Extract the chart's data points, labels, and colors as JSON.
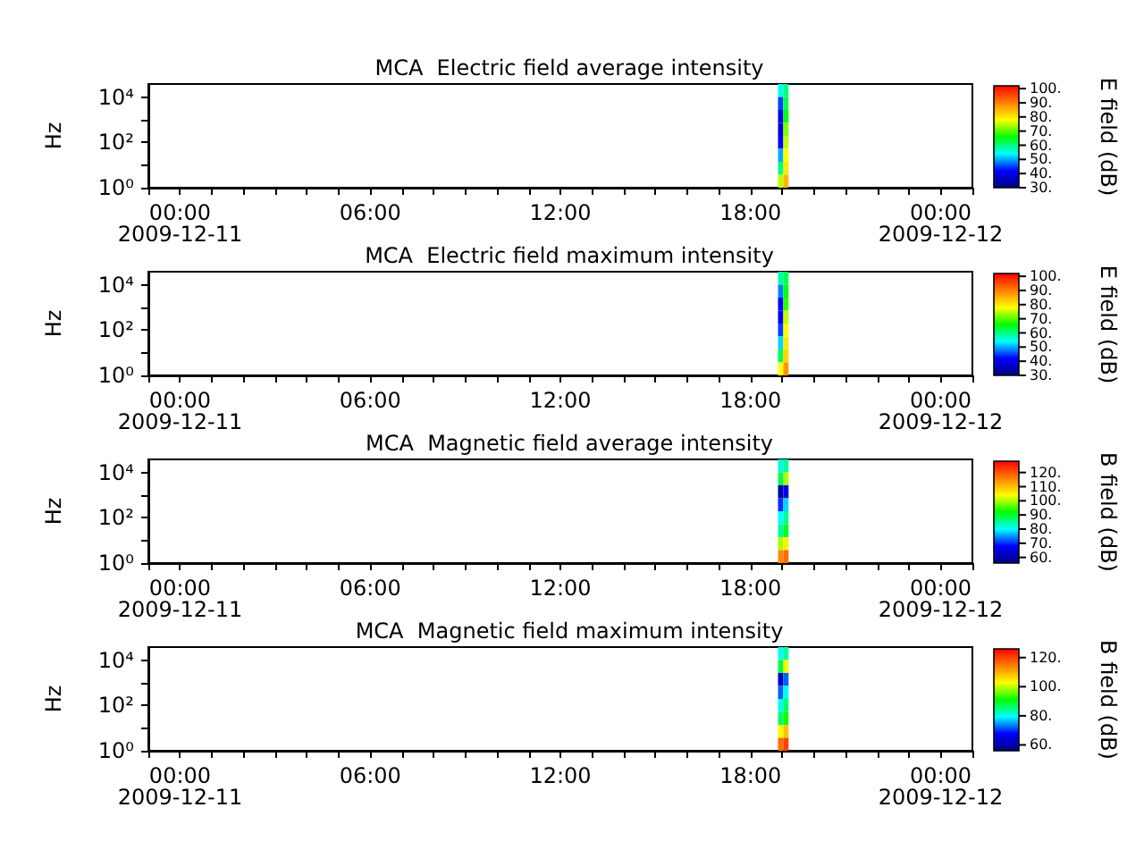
{
  "chart_data": [
    {
      "type": "heatmap",
      "title": "MCA  Electric field average intensity",
      "ylabel": "Hz",
      "clabel": "E field (dB)",
      "log": "y",
      "x": [
        "2009-12-11T18:57",
        "2009-12-11T19:07"
      ],
      "cells": [
        [
          55,
          60
        ],
        [
          45,
          62
        ],
        [
          40,
          65
        ],
        [
          38,
          72
        ],
        [
          42,
          75
        ],
        [
          50,
          78
        ],
        [
          60,
          80
        ],
        [
          75,
          85
        ]
      ],
      "colors": [
        "#000080",
        "#0000ff",
        "#00ffff",
        "#00ff00",
        "#ffff00",
        "#ff8000",
        "#ff0000"
      ],
      "clim": [
        30,
        102
      ],
      "cticks": [
        {
          "value": 30,
          "label": "30."
        },
        {
          "value": 40,
          "label": "40."
        },
        {
          "value": 50,
          "label": "50."
        },
        {
          "value": 60,
          "label": "60."
        },
        {
          "value": 70,
          "label": "70."
        },
        {
          "value": 80,
          "label": "80."
        },
        {
          "value": 90,
          "label": "90."
        },
        {
          "value": 100,
          "label": "100."
        }
      ],
      "xlim": [
        "2009-12-10T23:00",
        "2009-12-12T01:00"
      ],
      "xticks": [
        {
          "value": "2009-12-10T23:00",
          "label": null
        },
        {
          "value": "2009-12-11T00:00",
          "label": "00:00\n2009-12-11"
        },
        {
          "value": "2009-12-11T01:00",
          "label": null
        },
        {
          "value": "2009-12-11T02:00",
          "label": null
        },
        {
          "value": "2009-12-11T03:00",
          "label": null
        },
        {
          "value": "2009-12-11T04:00",
          "label": null
        },
        {
          "value": "2009-12-11T05:00",
          "label": null
        },
        {
          "value": "2009-12-11T06:00",
          "label": "06:00"
        },
        {
          "value": "2009-12-11T07:00",
          "label": null
        },
        {
          "value": "2009-12-11T08:00",
          "label": null
        },
        {
          "value": "2009-12-11T09:00",
          "label": null
        },
        {
          "value": "2009-12-11T10:00",
          "label": null
        },
        {
          "value": "2009-12-11T11:00",
          "label": null
        },
        {
          "value": "2009-12-11T12:00",
          "label": "12:00"
        },
        {
          "value": "2009-12-11T13:00",
          "label": null
        },
        {
          "value": "2009-12-11T14:00",
          "label": null
        },
        {
          "value": "2009-12-11T15:00",
          "label": null
        },
        {
          "value": "2009-12-11T16:00",
          "label": null
        },
        {
          "value": "2009-12-11T17:00",
          "label": null
        },
        {
          "value": "2009-12-11T18:00",
          "label": "18:00"
        },
        {
          "value": "2009-12-11T19:00",
          "label": null
        },
        {
          "value": "2009-12-11T20:00",
          "label": null
        },
        {
          "value": "2009-12-11T21:00",
          "label": null
        },
        {
          "value": "2009-12-11T22:00",
          "label": null
        },
        {
          "value": "2009-12-11T23:00",
          "label": null
        },
        {
          "value": "2009-12-12T00:00",
          "label": "00:00\n2009-12-12"
        },
        {
          "value": "2009-12-12T01:00",
          "label": null
        }
      ],
      "ylim": [
        1,
        38000
      ],
      "yticks": [
        {
          "value": 1,
          "label": "10⁰"
        },
        {
          "value": 10,
          "label": null
        },
        {
          "value": 100,
          "label": "10²"
        },
        {
          "value": 1000,
          "label": null
        },
        {
          "value": 10000,
          "label": "10⁴"
        }
      ]
    },
    {
      "type": "heatmap",
      "title": "MCA  Electric field maximum intensity",
      "ylabel": "Hz",
      "clabel": "E field (dB)",
      "log": "y",
      "x": [
        "2009-12-11T18:57",
        "2009-12-11T19:07"
      ],
      "cells": [
        [
          58,
          62
        ],
        [
          48,
          65
        ],
        [
          42,
          68
        ],
        [
          40,
          75
        ],
        [
          45,
          78
        ],
        [
          52,
          80
        ],
        [
          62,
          82
        ],
        [
          78,
          88
        ]
      ],
      "colors": [
        "#000080",
        "#0000ff",
        "#00ffff",
        "#00ff00",
        "#ffff00",
        "#ff8000",
        "#ff0000"
      ],
      "clim": [
        30,
        102
      ],
      "cticks": [
        {
          "value": 30,
          "label": "30."
        },
        {
          "value": 40,
          "label": "40."
        },
        {
          "value": 50,
          "label": "50."
        },
        {
          "value": 60,
          "label": "60."
        },
        {
          "value": 70,
          "label": "70."
        },
        {
          "value": 80,
          "label": "80."
        },
        {
          "value": 90,
          "label": "90."
        },
        {
          "value": 100,
          "label": "100."
        }
      ],
      "xlim": [
        "2009-12-10T23:00",
        "2009-12-12T01:00"
      ],
      "xticks": [
        {
          "value": "2009-12-10T23:00",
          "label": null
        },
        {
          "value": "2009-12-11T00:00",
          "label": "00:00\n2009-12-11"
        },
        {
          "value": "2009-12-11T01:00",
          "label": null
        },
        {
          "value": "2009-12-11T02:00",
          "label": null
        },
        {
          "value": "2009-12-11T03:00",
          "label": null
        },
        {
          "value": "2009-12-11T04:00",
          "label": null
        },
        {
          "value": "2009-12-11T05:00",
          "label": null
        },
        {
          "value": "2009-12-11T06:00",
          "label": "06:00"
        },
        {
          "value": "2009-12-11T07:00",
          "label": null
        },
        {
          "value": "2009-12-11T08:00",
          "label": null
        },
        {
          "value": "2009-12-11T09:00",
          "label": null
        },
        {
          "value": "2009-12-11T10:00",
          "label": null
        },
        {
          "value": "2009-12-11T11:00",
          "label": null
        },
        {
          "value": "2009-12-11T12:00",
          "label": "12:00"
        },
        {
          "value": "2009-12-11T13:00",
          "label": null
        },
        {
          "value": "2009-12-11T14:00",
          "label": null
        },
        {
          "value": "2009-12-11T15:00",
          "label": null
        },
        {
          "value": "2009-12-11T16:00",
          "label": null
        },
        {
          "value": "2009-12-11T17:00",
          "label": null
        },
        {
          "value": "2009-12-11T18:00",
          "label": "18:00"
        },
        {
          "value": "2009-12-11T19:00",
          "label": null
        },
        {
          "value": "2009-12-11T20:00",
          "label": null
        },
        {
          "value": "2009-12-11T21:00",
          "label": null
        },
        {
          "value": "2009-12-11T22:00",
          "label": null
        },
        {
          "value": "2009-12-11T23:00",
          "label": null
        },
        {
          "value": "2009-12-12T00:00",
          "label": "00:00\n2009-12-12"
        },
        {
          "value": "2009-12-12T01:00",
          "label": null
        }
      ],
      "ylim": [
        1,
        38000
      ],
      "yticks": [
        {
          "value": 1,
          "label": "10⁰"
        },
        {
          "value": 10,
          "label": null
        },
        {
          "value": 100,
          "label": "10²"
        },
        {
          "value": 1000,
          "label": null
        },
        {
          "value": 10000,
          "label": "10⁴"
        }
      ]
    },
    {
      "type": "heatmap",
      "title": "MCA  Magnetic field average intensity",
      "ylabel": "Hz",
      "clabel": "B field (dB)",
      "log": "y",
      "x": [
        "2009-12-11T18:57",
        "2009-12-11T19:07"
      ],
      "cells": [
        [
          82,
          85
        ],
        [
          88,
          100
        ],
        [
          60,
          66
        ],
        [
          70,
          78
        ],
        [
          80,
          85
        ],
        [
          85,
          90
        ],
        [
          100,
          105
        ],
        [
          115,
          118
        ]
      ],
      "colors": [
        "#000080",
        "#0000ff",
        "#00ffff",
        "#00ff00",
        "#ffff00",
        "#ff8000",
        "#ff0000"
      ],
      "clim": [
        56,
        128
      ],
      "cticks": [
        {
          "value": 60,
          "label": "60."
        },
        {
          "value": 70,
          "label": "70."
        },
        {
          "value": 80,
          "label": "80."
        },
        {
          "value": 90,
          "label": "90."
        },
        {
          "value": 100,
          "label": "100."
        },
        {
          "value": 110,
          "label": "110."
        },
        {
          "value": 120,
          "label": "120."
        }
      ],
      "xlim": [
        "2009-12-10T23:00",
        "2009-12-12T01:00"
      ],
      "xticks": [
        {
          "value": "2009-12-10T23:00",
          "label": null
        },
        {
          "value": "2009-12-11T00:00",
          "label": "00:00\n2009-12-11"
        },
        {
          "value": "2009-12-11T01:00",
          "label": null
        },
        {
          "value": "2009-12-11T02:00",
          "label": null
        },
        {
          "value": "2009-12-11T03:00",
          "label": null
        },
        {
          "value": "2009-12-11T04:00",
          "label": null
        },
        {
          "value": "2009-12-11T05:00",
          "label": null
        },
        {
          "value": "2009-12-11T06:00",
          "label": "06:00"
        },
        {
          "value": "2009-12-11T07:00",
          "label": null
        },
        {
          "value": "2009-12-11T08:00",
          "label": null
        },
        {
          "value": "2009-12-11T09:00",
          "label": null
        },
        {
          "value": "2009-12-11T10:00",
          "label": null
        },
        {
          "value": "2009-12-11T11:00",
          "label": null
        },
        {
          "value": "2009-12-11T12:00",
          "label": "12:00"
        },
        {
          "value": "2009-12-11T13:00",
          "label": null
        },
        {
          "value": "2009-12-11T14:00",
          "label": null
        },
        {
          "value": "2009-12-11T15:00",
          "label": null
        },
        {
          "value": "2009-12-11T16:00",
          "label": null
        },
        {
          "value": "2009-12-11T17:00",
          "label": null
        },
        {
          "value": "2009-12-11T18:00",
          "label": "18:00"
        },
        {
          "value": "2009-12-11T19:00",
          "label": null
        },
        {
          "value": "2009-12-11T20:00",
          "label": null
        },
        {
          "value": "2009-12-11T21:00",
          "label": null
        },
        {
          "value": "2009-12-11T22:00",
          "label": null
        },
        {
          "value": "2009-12-11T23:00",
          "label": null
        },
        {
          "value": "2009-12-12T00:00",
          "label": "00:00\n2009-12-12"
        },
        {
          "value": "2009-12-12T01:00",
          "label": null
        }
      ],
      "ylim": [
        1,
        38000
      ],
      "yticks": [
        {
          "value": 1,
          "label": "10⁰"
        },
        {
          "value": 10,
          "label": null
        },
        {
          "value": 100,
          "label": "10²"
        },
        {
          "value": 1000,
          "label": null
        },
        {
          "value": 10000,
          "label": "10⁴"
        }
      ]
    },
    {
      "type": "heatmap",
      "title": "MCA  Magnetic field maximum intensity",
      "ylabel": "Hz",
      "clabel": "B field (dB)",
      "log": "y",
      "x": [
        "2009-12-11T18:57",
        "2009-12-11T19:07"
      ],
      "cells": [
        [
          80,
          84
        ],
        [
          88,
          102
        ],
        [
          62,
          72
        ],
        [
          72,
          80
        ],
        [
          80,
          86
        ],
        [
          86,
          92
        ],
        [
          102,
          108
        ],
        [
          116,
          120
        ]
      ],
      "colors": [
        "#000080",
        "#0000ff",
        "#00ffff",
        "#00ff00",
        "#ffff00",
        "#ff8000",
        "#ff0000"
      ],
      "clim": [
        56,
        126
      ],
      "cticks": [
        {
          "value": 60,
          "label": "60."
        },
        {
          "value": 80,
          "label": "80."
        },
        {
          "value": 100,
          "label": "100."
        },
        {
          "value": 120,
          "label": "120."
        }
      ],
      "xlim": [
        "2009-12-10T23:00",
        "2009-12-12T01:00"
      ],
      "xticks": [
        {
          "value": "2009-12-10T23:00",
          "label": null
        },
        {
          "value": "2009-12-11T00:00",
          "label": "00:00\n2009-12-11"
        },
        {
          "value": "2009-12-11T01:00",
          "label": null
        },
        {
          "value": "2009-12-11T02:00",
          "label": null
        },
        {
          "value": "2009-12-11T03:00",
          "label": null
        },
        {
          "value": "2009-12-11T04:00",
          "label": null
        },
        {
          "value": "2009-12-11T05:00",
          "label": null
        },
        {
          "value": "2009-12-11T06:00",
          "label": "06:00"
        },
        {
          "value": "2009-12-11T07:00",
          "label": null
        },
        {
          "value": "2009-12-11T08:00",
          "label": null
        },
        {
          "value": "2009-12-11T09:00",
          "label": null
        },
        {
          "value": "2009-12-11T10:00",
          "label": null
        },
        {
          "value": "2009-12-11T11:00",
          "label": null
        },
        {
          "value": "2009-12-11T12:00",
          "label": "12:00"
        },
        {
          "value": "2009-12-11T13:00",
          "label": null
        },
        {
          "value": "2009-12-11T14:00",
          "label": null
        },
        {
          "value": "2009-12-11T15:00",
          "label": null
        },
        {
          "value": "2009-12-11T16:00",
          "label": null
        },
        {
          "value": "2009-12-11T17:00",
          "label": null
        },
        {
          "value": "2009-12-11T18:00",
          "label": "18:00"
        },
        {
          "value": "2009-12-11T19:00",
          "label": null
        },
        {
          "value": "2009-12-11T20:00",
          "label": null
        },
        {
          "value": "2009-12-11T21:00",
          "label": null
        },
        {
          "value": "2009-12-11T22:00",
          "label": null
        },
        {
          "value": "2009-12-11T23:00",
          "label": null
        },
        {
          "value": "2009-12-12T00:00",
          "label": "00:00\n2009-12-12"
        },
        {
          "value": "2009-12-12T01:00",
          "label": null
        }
      ],
      "ylim": [
        1,
        38000
      ],
      "yticks": [
        {
          "value": 1,
          "label": "10⁰"
        },
        {
          "value": 10,
          "label": null
        },
        {
          "value": 100,
          "label": "10²"
        },
        {
          "value": 1000,
          "label": null
        },
        {
          "value": 10000,
          "label": "10⁴"
        }
      ]
    }
  ]
}
